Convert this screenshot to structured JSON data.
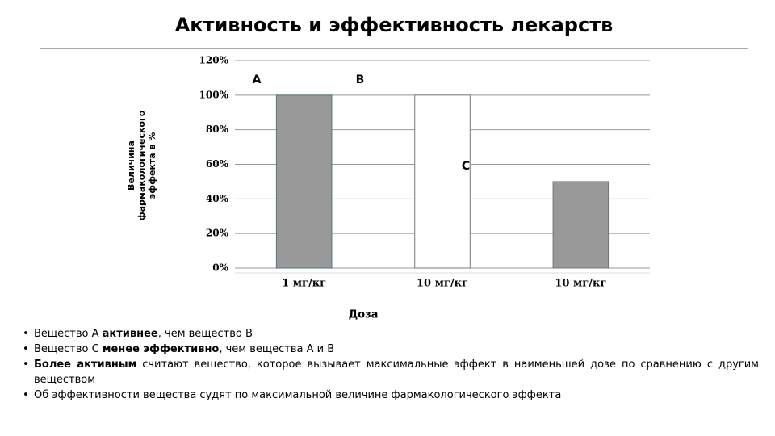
{
  "chart_data": {
    "type": "bar",
    "title": "Активность и эффективность лекарств",
    "categories": [
      "1 мг/кг",
      "10 мг/кг",
      "10 мг/кг"
    ],
    "values": [
      100,
      100,
      50
    ],
    "colors": [
      "#999999",
      "#ffffff",
      "#999999"
    ],
    "xlabel": "Доза",
    "ylabel": [
      "Величина",
      "фармакологического",
      "эффекта в %"
    ],
    "ylim": [
      0,
      120
    ],
    "yticks": [
      {
        "value": 0,
        "label": "0%"
      },
      {
        "value": 20,
        "label": "20%"
      },
      {
        "value": 40,
        "label": "40%"
      },
      {
        "value": 60,
        "label": "60%"
      },
      {
        "value": 80,
        "label": "80%"
      },
      {
        "value": 100,
        "label": "100%"
      },
      {
        "value": 120,
        "label": "120%"
      }
    ],
    "grid": true,
    "annotations": [
      "A",
      "B",
      "C"
    ]
  },
  "notes": [
    [
      {
        "text": "Вещество А "
      },
      {
        "bold": "активнее"
      },
      {
        "text": ", чем вещество В"
      }
    ],
    [
      {
        "text": "Вещество С "
      },
      {
        "bold": "менее эффективно"
      },
      {
        "text": ", чем вещества А и В"
      }
    ],
    [
      {
        "bold": "Более активным"
      },
      {
        "text": " считают вещество, которое вызывает максимальные эффект в наименьшей дозе по сравнению с другим веществом"
      }
    ],
    [
      {
        "text": "Об эффективности вещества судят по максимальной величине фармакологического эффекта"
      }
    ]
  ]
}
